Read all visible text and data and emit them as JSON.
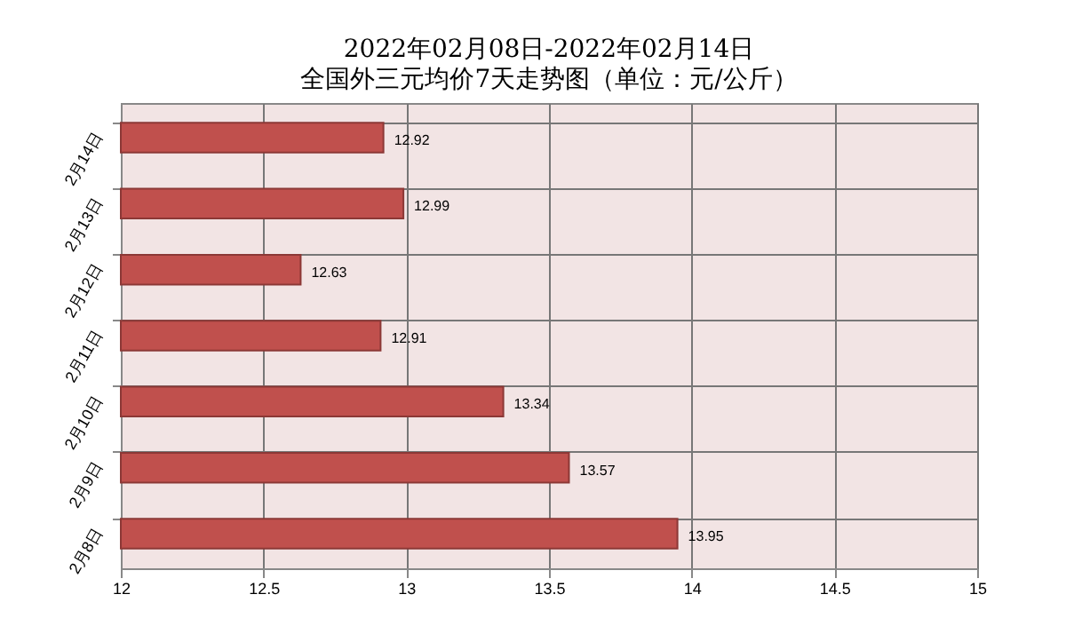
{
  "chart_data": {
    "type": "bar",
    "orientation": "horizontal",
    "title": "2022年02月08日-2022年02月14日",
    "subtitle": "全国外三元均价7天走势图（单位：元/公斤）",
    "categories": [
      "2月14日",
      "2月13日",
      "2月12日",
      "2月11日",
      "2月10日",
      "2月9日",
      "2月8日"
    ],
    "values": [
      12.92,
      12.99,
      12.63,
      12.91,
      13.34,
      13.57,
      13.95
    ],
    "color": "#c0504d",
    "xlim": [
      12,
      15
    ],
    "xticks": [
      12,
      12.5,
      13,
      13.5,
      14,
      14.5,
      15
    ],
    "grid": true,
    "data_labels": true
  }
}
